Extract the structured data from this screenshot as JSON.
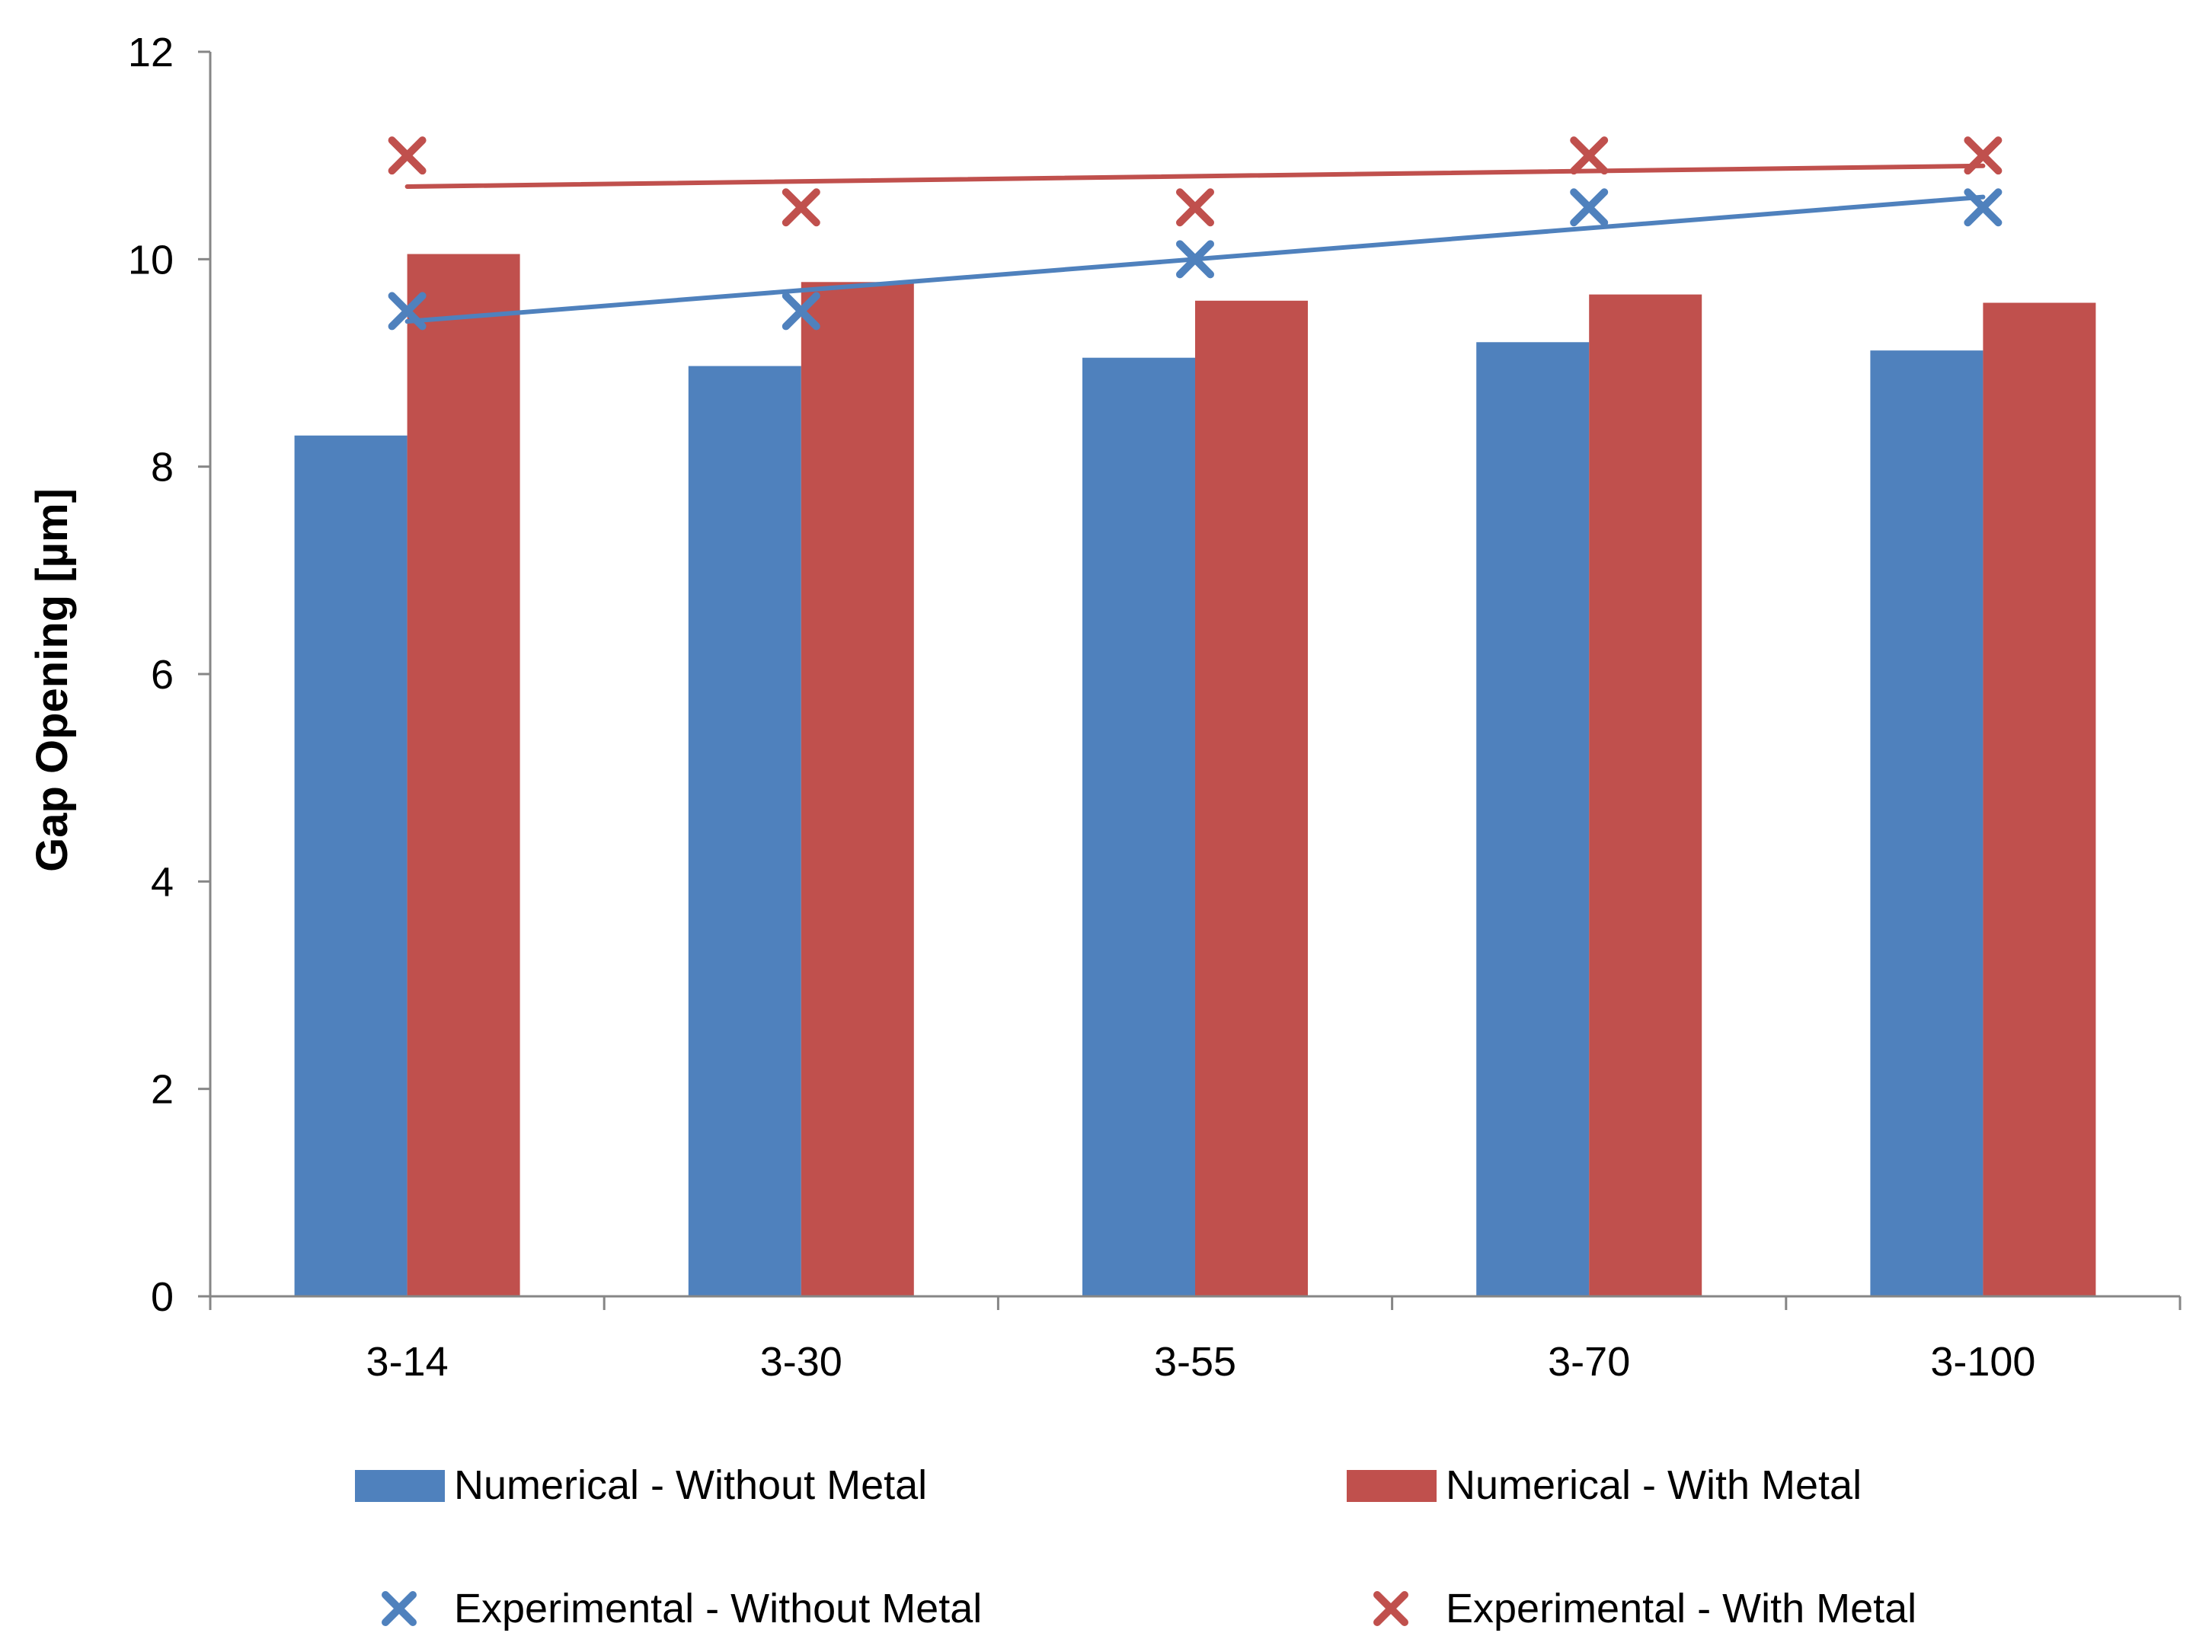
{
  "colors": {
    "without_metal": "#4f81bd",
    "with_metal": "#c0504d",
    "axis": "#868686"
  },
  "chart_data": {
    "type": "bar",
    "title": "",
    "xlabel": "",
    "ylabel": "Gap Opening [µm]",
    "ylim": [
      0,
      12
    ],
    "yticks": [
      "0",
      "2",
      "4",
      "6",
      "8",
      "10",
      "12"
    ],
    "categories": [
      "3-14",
      "3-30",
      "3-55",
      "3-70",
      "3-100"
    ],
    "grid": false,
    "legend_position": "bottom",
    "series": [
      {
        "name": "Numerical - Without Metal",
        "kind": "bar",
        "color_key": "without_metal",
        "values": [
          8.3,
          8.97,
          9.05,
          9.2,
          9.12
        ]
      },
      {
        "name": "Numerical - With Metal",
        "kind": "bar",
        "color_key": "with_metal",
        "values": [
          10.05,
          9.78,
          9.6,
          9.66,
          9.58
        ]
      },
      {
        "name": "Experimental - Without Metal",
        "kind": "scatter",
        "marker": "x",
        "color_key": "without_metal",
        "values": [
          9.5,
          9.5,
          10.0,
          10.5,
          10.5
        ]
      },
      {
        "name": "Experimental - With Metal",
        "kind": "scatter",
        "marker": "x",
        "color_key": "with_metal",
        "values": [
          11.0,
          10.5,
          10.5,
          11.0,
          11.0
        ]
      }
    ],
    "trendlines": [
      {
        "series": "Experimental - Without Metal",
        "color_key": "without_metal",
        "start": 9.4,
        "end": 10.6
      },
      {
        "series": "Experimental - With Metal",
        "color_key": "with_metal",
        "start": 10.7,
        "end": 10.9
      }
    ]
  }
}
